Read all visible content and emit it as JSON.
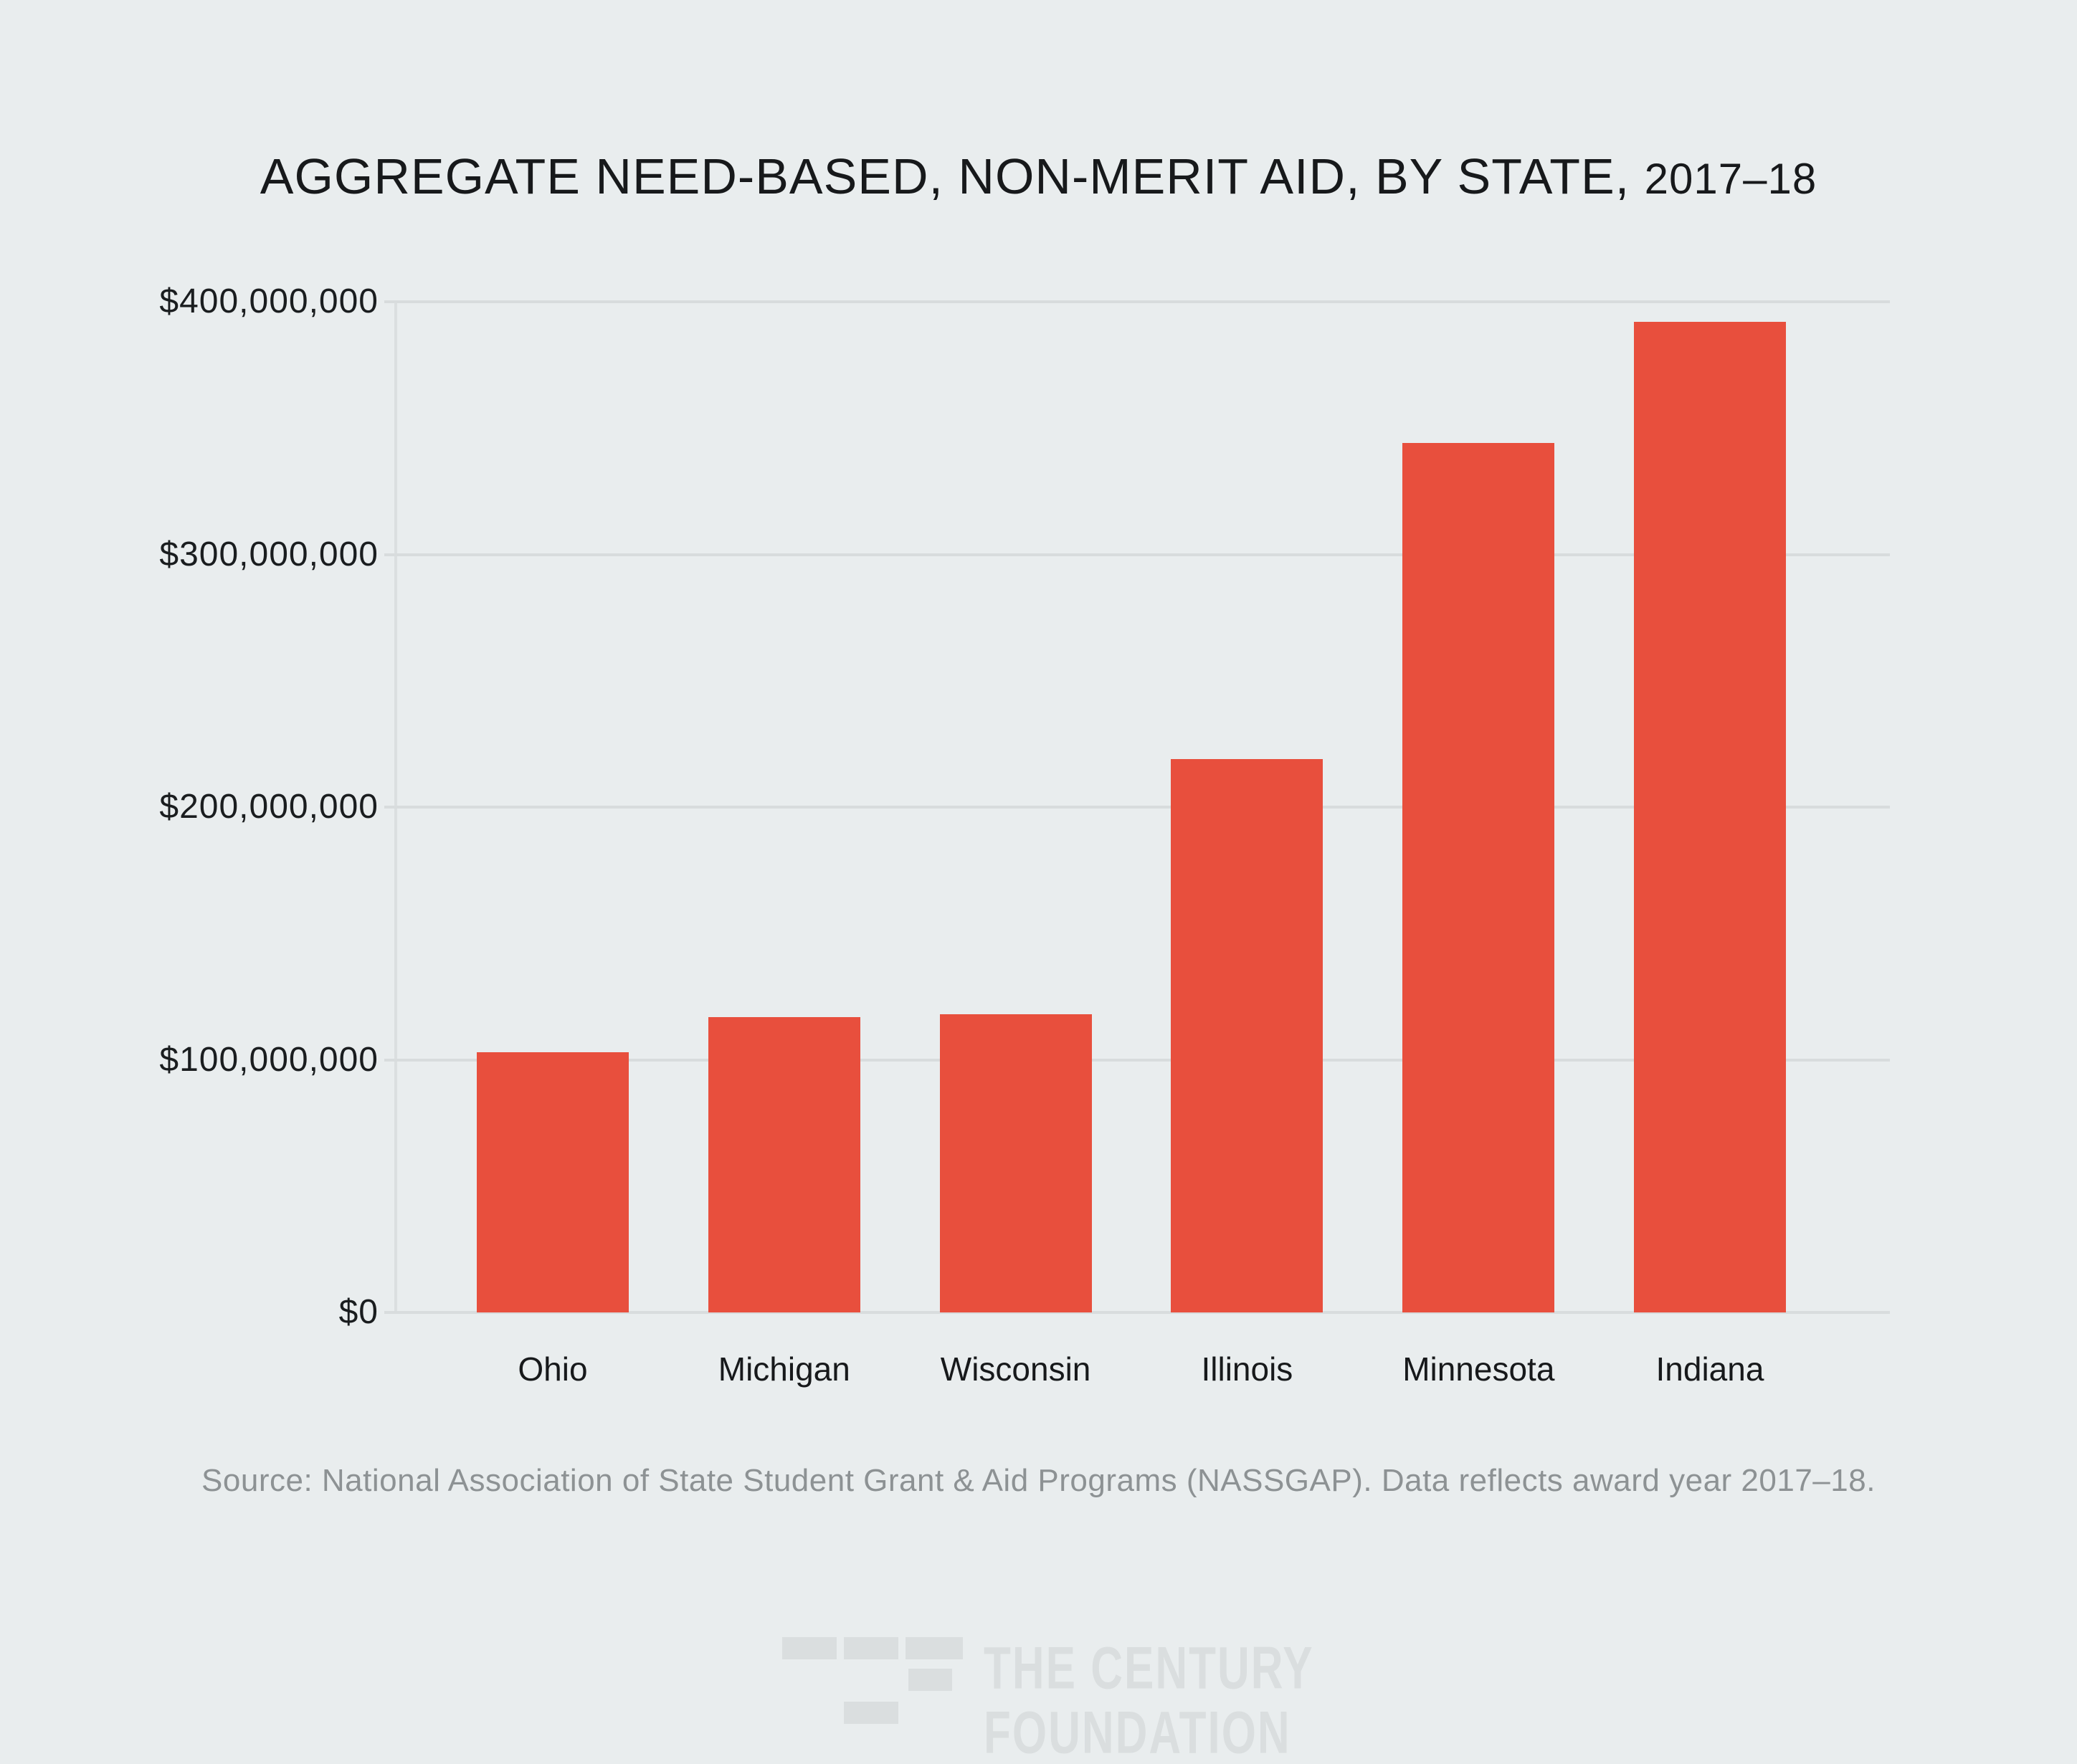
{
  "title": {
    "main": "AGGREGATE NEED-BASED, NON-MERIT AID, BY STATE,",
    "year": "2017–18"
  },
  "chart_data": {
    "type": "bar",
    "title": "AGGREGATE NEED-BASED, NON-MERIT AID, BY STATE, 2017–18",
    "categories": [
      "Ohio",
      "Michigan",
      "Wisconsin",
      "Illinois",
      "Minnesota",
      "Indiana"
    ],
    "values": [
      103000000,
      117000000,
      118000000,
      219000000,
      344000000,
      392000000
    ],
    "xlabel": "",
    "ylabel": "",
    "ylim": [
      0,
      400000000
    ],
    "y_tick_values": [
      0,
      100000000,
      200000000,
      300000000,
      400000000
    ],
    "y_tick_labels": [
      "$0",
      "$100,000,000",
      "$200,000,000",
      "$300,000,000",
      "$400,000,000"
    ],
    "grid": true,
    "legend": false,
    "bar_color": "#e84f3d"
  },
  "source": {
    "text": "Source: National Association of State Student Grant & Aid Programs (NASSGAP). Data reflects award year 2017–18."
  },
  "logo": {
    "line1": "THE CENTURY",
    "line2": "FOUNDATION"
  },
  "colors": {
    "background": "#e9edee",
    "bar_red": "#e84f3d",
    "gridline": "#d8dcdd",
    "source_gray": "#8d9294",
    "logo_gray": "#dadedf"
  }
}
